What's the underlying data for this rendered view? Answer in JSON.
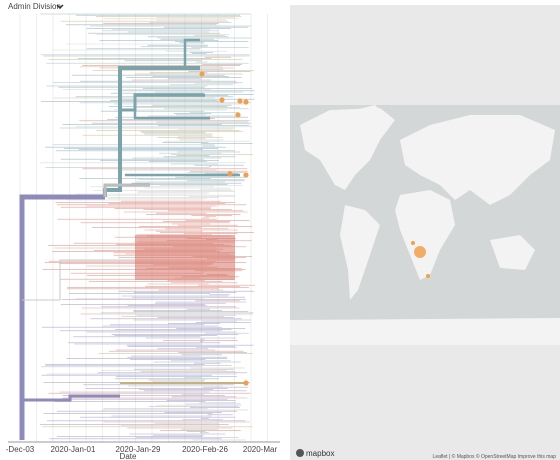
{
  "header": {
    "dropdown": "Admin Division"
  },
  "tree": {
    "axis_labels": [
      "-Dec-03",
      "2020-Jan-01",
      "2020-Jan-29",
      "2020-Feb-26",
      "2020-Mar"
    ],
    "axis_title": "Date"
  },
  "map": {
    "logo": "mapbox",
    "attribution": "Leaflet | © Mapbox © OpenStreetMap Improve this map"
  }
}
